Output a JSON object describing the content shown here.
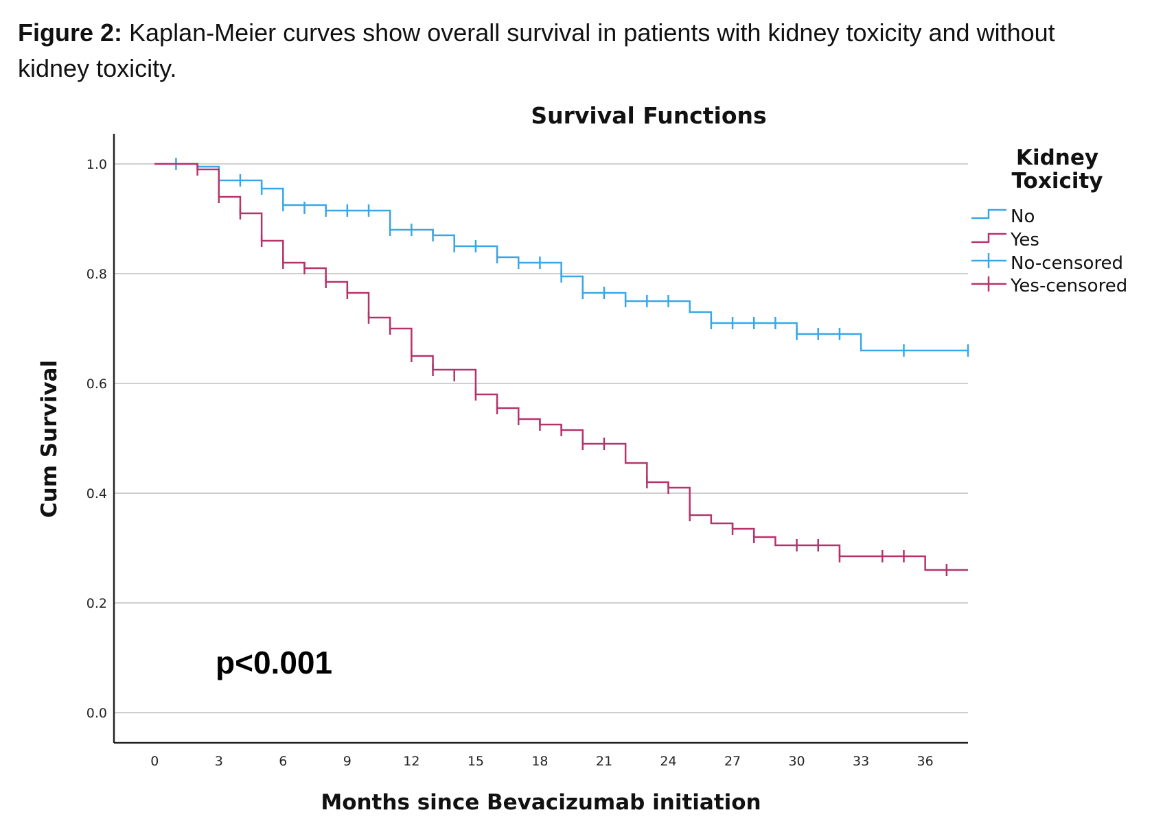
{
  "caption": {
    "lead": "Figure 2:",
    "text": " Kaplan-Meier curves show overall survival in patients with kidney toxicity and without kidney toxicity."
  },
  "colors": {
    "no": "#3aa6e8",
    "yes": "#b5336b",
    "grid": "#cfcfcf",
    "axis": "#222222"
  },
  "chart_data": {
    "type": "line",
    "subtype": "kaplan-meier-step",
    "title": "Survival Functions",
    "xlabel": "Months since Bevacizumab initiation",
    "ylabel": "Cum Survival",
    "xlim": [
      -1.9,
      38
    ],
    "ylim": [
      -0.055,
      1.055
    ],
    "xticks": [
      0,
      3,
      6,
      9,
      12,
      15,
      18,
      21,
      24,
      27,
      30,
      33,
      36
    ],
    "yticks": [
      0.0,
      0.2,
      0.4,
      0.6,
      0.8,
      1.0
    ],
    "ytick_labels": [
      "0.0",
      "0.2",
      "0.4",
      "0.6",
      "0.8",
      "1.0"
    ],
    "grid": "horizontal",
    "legend": {
      "title_line1": "Kidney",
      "title_line2": "Toxicity",
      "position": "right",
      "entries": [
        "No",
        "Yes",
        "No-censored",
        "Yes-censored"
      ]
    },
    "annotation": "p<0.001",
    "series": [
      {
        "name": "No",
        "steps": [
          [
            0,
            1.0
          ],
          [
            2.0,
            0.995
          ],
          [
            3.0,
            0.97
          ],
          [
            5.0,
            0.955
          ],
          [
            6.0,
            0.925
          ],
          [
            8.0,
            0.915
          ],
          [
            11.0,
            0.88
          ],
          [
            13.0,
            0.87
          ],
          [
            14.0,
            0.85
          ],
          [
            16.0,
            0.83
          ],
          [
            17.0,
            0.82
          ],
          [
            19.0,
            0.795
          ],
          [
            20.0,
            0.765
          ],
          [
            22.0,
            0.75
          ],
          [
            25.0,
            0.73
          ],
          [
            26.0,
            0.71
          ],
          [
            30.0,
            0.69
          ],
          [
            33.0,
            0.66
          ]
        ],
        "end_x": 38,
        "censored": [
          [
            1.0,
            1.0
          ],
          [
            3.0,
            0.97
          ],
          [
            4.0,
            0.97
          ],
          [
            5.0,
            0.955
          ],
          [
            6.0,
            0.925
          ],
          [
            7.0,
            0.92
          ],
          [
            8.0,
            0.915
          ],
          [
            9.0,
            0.915
          ],
          [
            10.0,
            0.915
          ],
          [
            11.0,
            0.88
          ],
          [
            12.0,
            0.88
          ],
          [
            13.0,
            0.87
          ],
          [
            14.0,
            0.85
          ],
          [
            15.0,
            0.85
          ],
          [
            16.0,
            0.83
          ],
          [
            17.0,
            0.82
          ],
          [
            18.0,
            0.82
          ],
          [
            19.0,
            0.795
          ],
          [
            20.0,
            0.765
          ],
          [
            21.0,
            0.765
          ],
          [
            22.0,
            0.75
          ],
          [
            23.0,
            0.75
          ],
          [
            24.0,
            0.75
          ],
          [
            26.0,
            0.71
          ],
          [
            27.0,
            0.71
          ],
          [
            28.0,
            0.71
          ],
          [
            29.0,
            0.71
          ],
          [
            30.0,
            0.69
          ],
          [
            31.0,
            0.69
          ],
          [
            32.0,
            0.69
          ],
          [
            35.0,
            0.66
          ],
          [
            38.0,
            0.66
          ]
        ]
      },
      {
        "name": "Yes",
        "steps": [
          [
            0,
            1.0
          ],
          [
            2.0,
            0.99
          ],
          [
            3.0,
            0.94
          ],
          [
            4.0,
            0.91
          ],
          [
            5.0,
            0.86
          ],
          [
            6.0,
            0.82
          ],
          [
            7.0,
            0.81
          ],
          [
            8.0,
            0.785
          ],
          [
            9.0,
            0.765
          ],
          [
            10.0,
            0.72
          ],
          [
            11.0,
            0.7
          ],
          [
            12.0,
            0.65
          ],
          [
            13.0,
            0.625
          ],
          [
            15.0,
            0.58
          ],
          [
            16.0,
            0.555
          ],
          [
            17.0,
            0.535
          ],
          [
            18.0,
            0.525
          ],
          [
            19.0,
            0.515
          ],
          [
            20.0,
            0.49
          ],
          [
            22.0,
            0.455
          ],
          [
            23.0,
            0.42
          ],
          [
            24.0,
            0.41
          ],
          [
            25.0,
            0.36
          ],
          [
            26.0,
            0.345
          ],
          [
            27.0,
            0.335
          ],
          [
            28.0,
            0.32
          ],
          [
            29.0,
            0.305
          ],
          [
            32.0,
            0.285
          ],
          [
            36.0,
            0.26
          ]
        ],
        "end_x": 38,
        "censored": [
          [
            2.0,
            0.99
          ],
          [
            3.0,
            0.94
          ],
          [
            4.0,
            0.91
          ],
          [
            5.0,
            0.86
          ],
          [
            6.0,
            0.82
          ],
          [
            7.0,
            0.81
          ],
          [
            8.0,
            0.785
          ],
          [
            9.0,
            0.765
          ],
          [
            10.0,
            0.72
          ],
          [
            11.0,
            0.7
          ],
          [
            12.0,
            0.65
          ],
          [
            13.0,
            0.625
          ],
          [
            14.0,
            0.615
          ],
          [
            15.0,
            0.58
          ],
          [
            16.0,
            0.555
          ],
          [
            17.0,
            0.535
          ],
          [
            18.0,
            0.525
          ],
          [
            19.0,
            0.515
          ],
          [
            20.0,
            0.49
          ],
          [
            21.0,
            0.49
          ],
          [
            23.0,
            0.42
          ],
          [
            24.0,
            0.41
          ],
          [
            25.0,
            0.36
          ],
          [
            27.0,
            0.335
          ],
          [
            28.0,
            0.32
          ],
          [
            30.0,
            0.305
          ],
          [
            31.0,
            0.305
          ],
          [
            32.0,
            0.285
          ],
          [
            34.0,
            0.285
          ],
          [
            35.0,
            0.285
          ],
          [
            37.0,
            0.26
          ]
        ]
      }
    ]
  }
}
